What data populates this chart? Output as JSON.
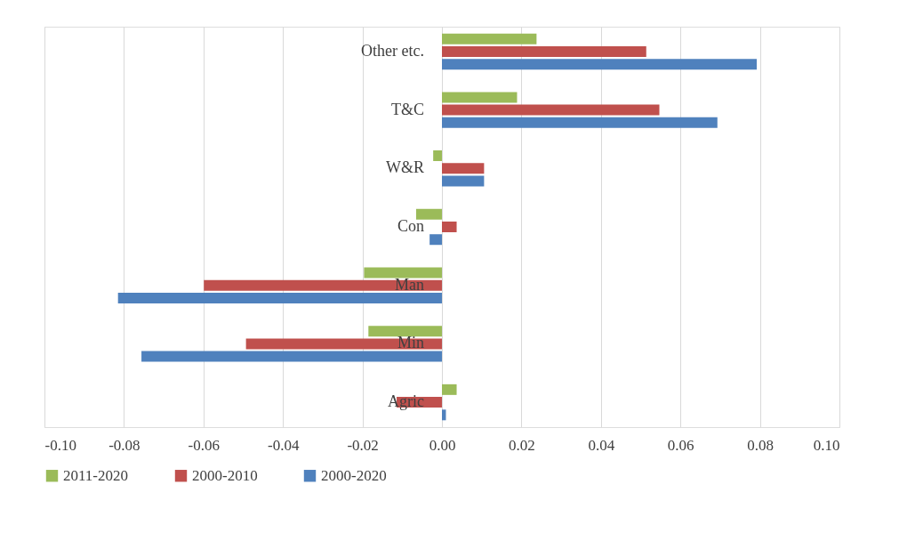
{
  "chart_data": {
    "type": "bar",
    "orientation": "horizontal",
    "categories": [
      "Other etc.",
      "T&C",
      "W&R",
      "Con",
      "Man",
      "Min",
      "Agric"
    ],
    "series": [
      {
        "name": "2011-2020",
        "color": "#9bbb59",
        "values": [
          0.0238,
          0.0189,
          -0.0022,
          -0.0065,
          -0.0196,
          -0.0185,
          0.0037
        ]
      },
      {
        "name": "2000-2010",
        "color": "#c0504d",
        "values": [
          0.0514,
          0.0547,
          0.0106,
          0.0037,
          -0.0599,
          -0.0493,
          -0.0114
        ]
      },
      {
        "name": "2000-2020",
        "color": "#4f81bd",
        "values": [
          0.0792,
          0.0693,
          0.0106,
          -0.0031,
          -0.0815,
          -0.0756,
          0.001
        ]
      }
    ],
    "xlim": [
      -0.1,
      0.1
    ],
    "xticks": [
      {
        "value": -0.1,
        "label": "-0.10"
      },
      {
        "value": -0.08,
        "label": "-0.08"
      },
      {
        "value": -0.06,
        "label": "-0.06"
      },
      {
        "value": -0.04,
        "label": "-0.04"
      },
      {
        "value": -0.02,
        "label": "-0.02"
      },
      {
        "value": 0,
        "label": "0.00"
      },
      {
        "value": 0.02,
        "label": "0.02"
      },
      {
        "value": 0.04,
        "label": "0.04"
      },
      {
        "value": 0.06,
        "label": "0.06"
      },
      {
        "value": 0.08,
        "label": "0.08"
      },
      {
        "value": 0.1,
        "label": "0.10"
      }
    ],
    "grid": "x",
    "legend": "bottom"
  }
}
